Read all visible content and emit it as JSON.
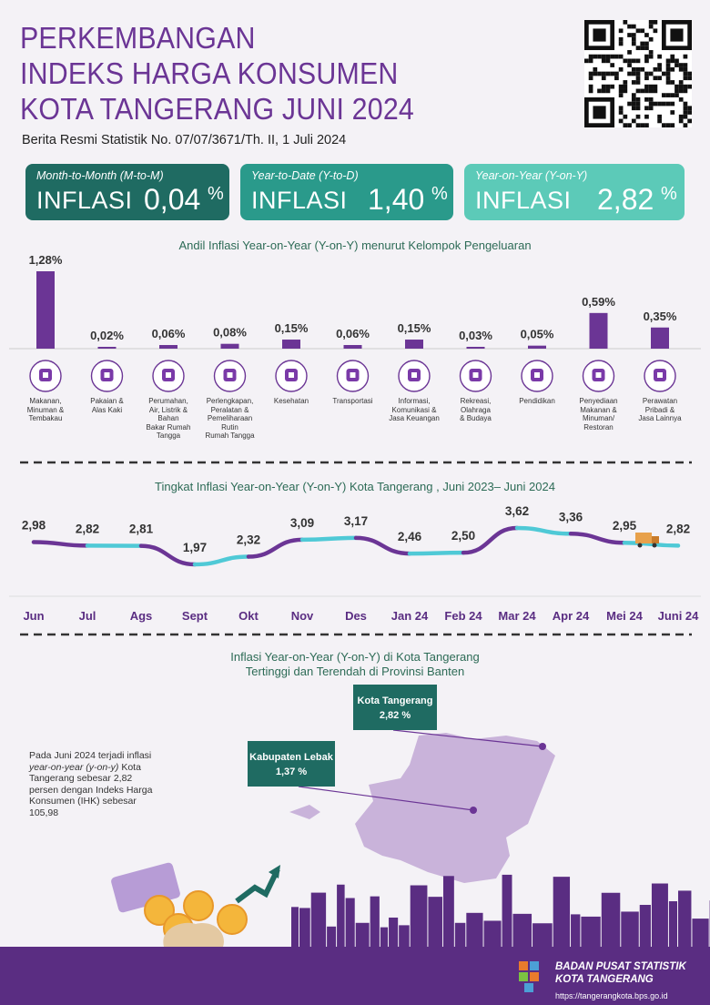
{
  "title_lines": [
    "PERKEMBANGAN",
    "INDEKS HARGA KONSUMEN",
    "KOTA TANGERANG JUNI 2024"
  ],
  "subtitle": "Berita Resmi Statistik No. 07/07/3671/Th. II, 1 Juli 2024",
  "cards": [
    {
      "label": "Month-to-Month (M-to-M)",
      "word": "INFLASI",
      "value": "0,04",
      "pct": "%"
    },
    {
      "label": "Year-to-Date (Y-to-D)",
      "word": "INFLASI",
      "value": "1,40",
      "pct": "%"
    },
    {
      "label": "Year-on-Year (Y-on-Y)",
      "word": "INFLASI",
      "value": "2,82",
      "pct": "%"
    }
  ],
  "colors": {
    "purple": "#6b3595",
    "bar": "#6b3595",
    "teal": "#4fc9d6",
    "dark_teal": "#1f6b62"
  },
  "chart_data": [
    {
      "type": "bar",
      "title": "Andil Inflasi Year-on-Year (Y-on-Y) menurut Kelompok Pengeluaran",
      "categories": [
        "Makanan, Minuman & Tembakau",
        "Pakaian & Alas Kaki",
        "Perumahan, Air, Listrik & Bahan Bakar Rumah Tangga",
        "Perlengkapan, Peralatan & Pemeliharaan Rutin Rumah Tangga",
        "Kesehatan",
        "Transportasi",
        "Informasi, Komunikasi & Jasa Keuangan",
        "Rekreasi, Olahraga & Budaya",
        "Pendidikan",
        "Penyediaan Makanan & Minuman/ Restoran",
        "Perawatan Pribadi & Jasa Lainnya"
      ],
      "category_lines": [
        [
          "Makanan,",
          "Minuman &",
          "Tembakau"
        ],
        [
          "Pakaian &",
          "Alas Kaki"
        ],
        [
          "Perumahan,",
          "Air, Listrik &",
          "Bahan",
          "Bakar Rumah",
          "Tangga"
        ],
        [
          "Perlengkapan,",
          "Peralatan &",
          "Pemeliharaan",
          "Rutin",
          "Rumah Tangga"
        ],
        [
          "Kesehatan"
        ],
        [
          "Transportasi"
        ],
        [
          "Informasi,",
          "Komunikasi &",
          "Jasa Keuangan"
        ],
        [
          "Rekreasi,",
          "Olahraga",
          "& Budaya"
        ],
        [
          "Pendidikan"
        ],
        [
          "Penyediaan",
          "Makanan &",
          "Minuman/",
          "Restoran"
        ],
        [
          "Perawatan",
          "Pribadi &",
          "Jasa Lainnya"
        ]
      ],
      "icons": [
        "food-basket-icon",
        "dress-icon",
        "house-icon",
        "appliance-icon",
        "medical-kit-icon",
        "airplane-icon",
        "smartphone-icon",
        "soccer-player-icon",
        "graduation-cap-icon",
        "restaurant-meal-icon",
        "scissors-tools-icon"
      ],
      "values": [
        1.28,
        0.02,
        0.06,
        0.08,
        0.15,
        0.06,
        0.15,
        0.03,
        0.05,
        0.59,
        0.35
      ],
      "value_labels": [
        "1,28%",
        "0,02%",
        "0,06%",
        "0,08%",
        "0,15%",
        "0,06%",
        "0,15%",
        "0,03%",
        "0,05%",
        "0,59%",
        "0,35%"
      ],
      "ylim": [
        0,
        1.28
      ]
    },
    {
      "type": "line",
      "title": "Tingkat Inflasi Year-on-Year (Y-on-Y) Kota Tangerang , Juni 2023– Juni 2024",
      "categories": [
        "Jun",
        "Jul",
        "Ags",
        "Sept",
        "Okt",
        "Nov",
        "Des",
        "Jan 24",
        "Feb 24",
        "Mar 24",
        "Apr 24",
        "Mei 24",
        "Juni 24"
      ],
      "values": [
        2.98,
        2.82,
        2.81,
        1.97,
        2.32,
        3.09,
        3.17,
        2.46,
        2.5,
        3.62,
        3.36,
        2.95,
        2.82
      ],
      "value_labels": [
        "2,98",
        "2,82",
        "2,81",
        "1,97",
        "2,32",
        "3,09",
        "3,17",
        "2,46",
        "2,50",
        "3,62",
        "3,36",
        "2,95",
        "2,82"
      ]
    }
  ],
  "map": {
    "title_lines": [
      "Inflasi Year-on-Year (Y-on-Y) di Kota Tangerang",
      "Tertinggi dan Terendah di Provinsi Banten"
    ],
    "highest": {
      "name": "Kota Tangerang",
      "value": "2,82 %"
    },
    "lowest": {
      "name": "Kabupaten Lebak",
      "value": "1,37 %"
    }
  },
  "paragraph": {
    "p1": "Pada Juni 2024 terjadi inflasi ",
    "p1_italic": "year-on-year (y-on-y)",
    "p2": " Kota Tangerang sebesar 2,82 persen dengan Indeks Harga Konsumen (IHK) sebesar 105,98"
  },
  "footer": {
    "org_line1": "BADAN PUSAT STATISTIK",
    "org_line2": "KOTA TANGERANG",
    "url": "https://tangerangkota.bps.go.id"
  }
}
